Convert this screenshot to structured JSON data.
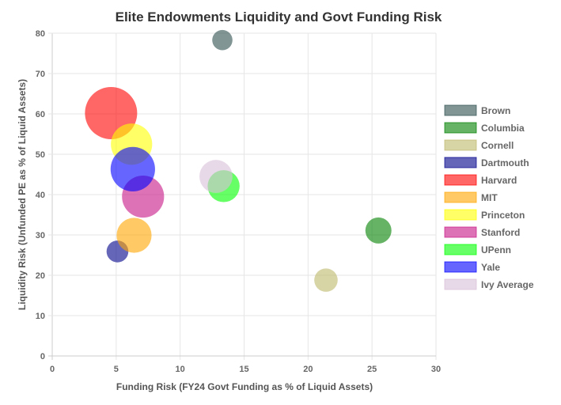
{
  "chart_data": {
    "type": "bubble",
    "title": "Elite Endowments Liquidity and Govt Funding Risk",
    "xlabel": "Funding Risk (FY24 Govt Funding as % of Liquid Assets)",
    "ylabel": "Liquidity Risk (Unfunded PE as % of Liquid Assets)",
    "xlim": [
      0,
      30
    ],
    "ylim": [
      0,
      80
    ],
    "xticks": [
      0,
      5,
      10,
      15,
      20,
      25,
      30
    ],
    "yticks": [
      0,
      10,
      20,
      30,
      40,
      50,
      60,
      70,
      80
    ],
    "grid": true,
    "legend_position": "right",
    "series": [
      {
        "name": "Brown",
        "x": 13.3,
        "y": 78.3,
        "size": 0.6,
        "color": "#2F4F4F"
      },
      {
        "name": "Columbia",
        "x": 25.5,
        "y": 31.1,
        "size": 1.0,
        "color": "#008000"
      },
      {
        "name": "Cornell",
        "x": 21.4,
        "y": 18.8,
        "size": 0.8,
        "color": "#BDB76B"
      },
      {
        "name": "Dartmouth",
        "x": 5.1,
        "y": 25.9,
        "size": 0.7,
        "color": "#00008B"
      },
      {
        "name": "Harvard",
        "x": 4.6,
        "y": 60.2,
        "size": 4.0,
        "color": "#FF0000"
      },
      {
        "name": "MIT",
        "x": 6.4,
        "y": 29.9,
        "size": 1.8,
        "color": "#FFA500"
      },
      {
        "name": "Princeton",
        "x": 6.2,
        "y": 52.5,
        "size": 2.5,
        "color": "#FFFF00"
      },
      {
        "name": "Stanford",
        "x": 7.1,
        "y": 39.5,
        "size": 2.6,
        "color": "#C71585"
      },
      {
        "name": "UPenn",
        "x": 13.4,
        "y": 42.1,
        "size": 1.5,
        "color": "#00FF00"
      },
      {
        "name": "Yale",
        "x": 6.3,
        "y": 46.3,
        "size": 2.9,
        "color": "#0000FF"
      },
      {
        "name": "Ivy Average",
        "x": 12.8,
        "y": 44.5,
        "size": 1.6,
        "color": "#D8BFD8"
      }
    ]
  }
}
